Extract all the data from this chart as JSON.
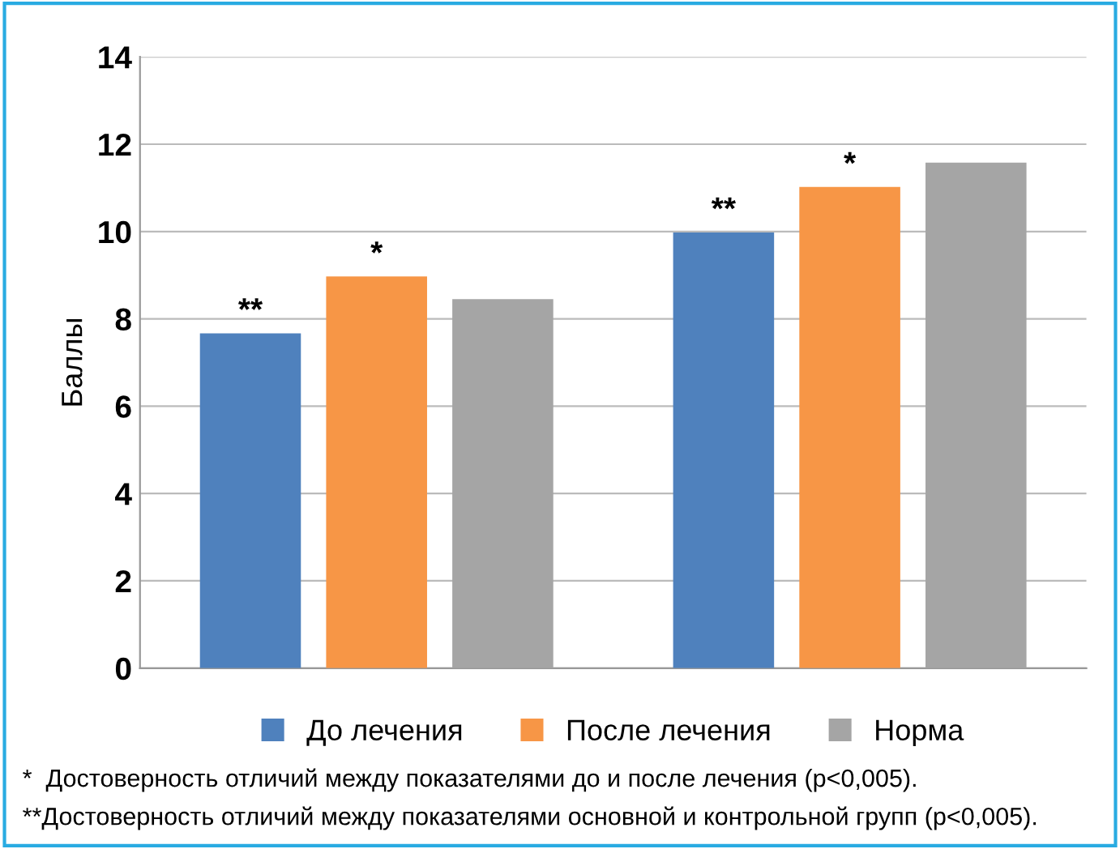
{
  "chart_data": {
    "type": "bar",
    "ylabel": "Баллы",
    "categories": [
      null,
      null
    ],
    "series": [
      {
        "name": "До лечения",
        "color": "#4f81bd",
        "values": [
          7.67,
          9.98
        ]
      },
      {
        "name": "После лечения",
        "color": "#f79646",
        "values": [
          8.97,
          11.02
        ]
      },
      {
        "name": "Норма",
        "color": "#a5a5a5",
        "values": [
          8.45,
          11.58
        ]
      }
    ],
    "ylim": [
      0,
      14
    ],
    "yticks": [
      0,
      2,
      4,
      6,
      8,
      10,
      12,
      14
    ],
    "grid": "y",
    "legend": "bottom",
    "annotations": [
      {
        "text": "**",
        "y": 7.67
      },
      {
        "text": "*",
        "y": 8.97
      },
      {
        "text": "**",
        "y": 9.98
      },
      {
        "text": "*",
        "y": 11.02
      },
      "*  Достоверность отличий между показателями до и после лечения (p<0,005).",
      "**Достоверность отличий между показателями основной и контрольной групп (p<0,005)."
    ]
  }
}
